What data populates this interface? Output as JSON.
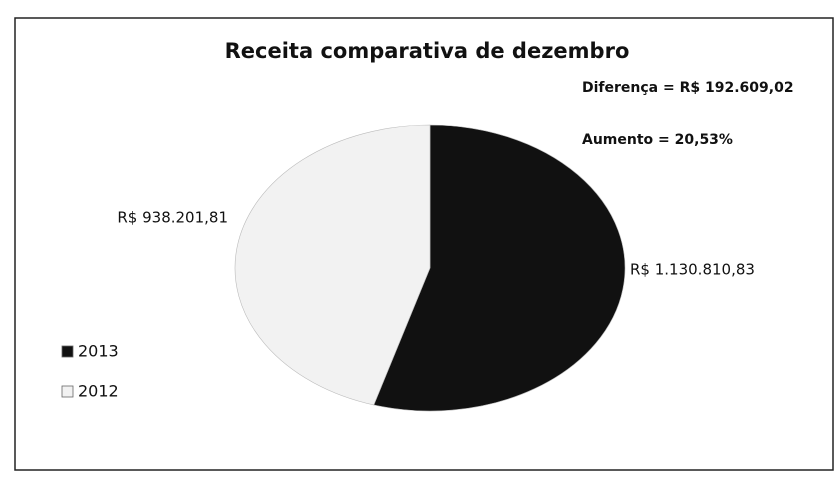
{
  "chart_data": {
    "type": "pie",
    "title": "Receita comparativa de dezembro",
    "annotations": [
      "Diferença = R$ 192.609,02",
      "Aumento = 20,53%"
    ],
    "categories": [
      "2013",
      "2012"
    ],
    "values": [
      1130810.83,
      938201.81
    ],
    "value_labels": [
      "R$ 1.130.810,83",
      "R$ 938.201,81"
    ],
    "colors": [
      "#111111",
      "#f2f2f2"
    ],
    "legend": "left"
  }
}
